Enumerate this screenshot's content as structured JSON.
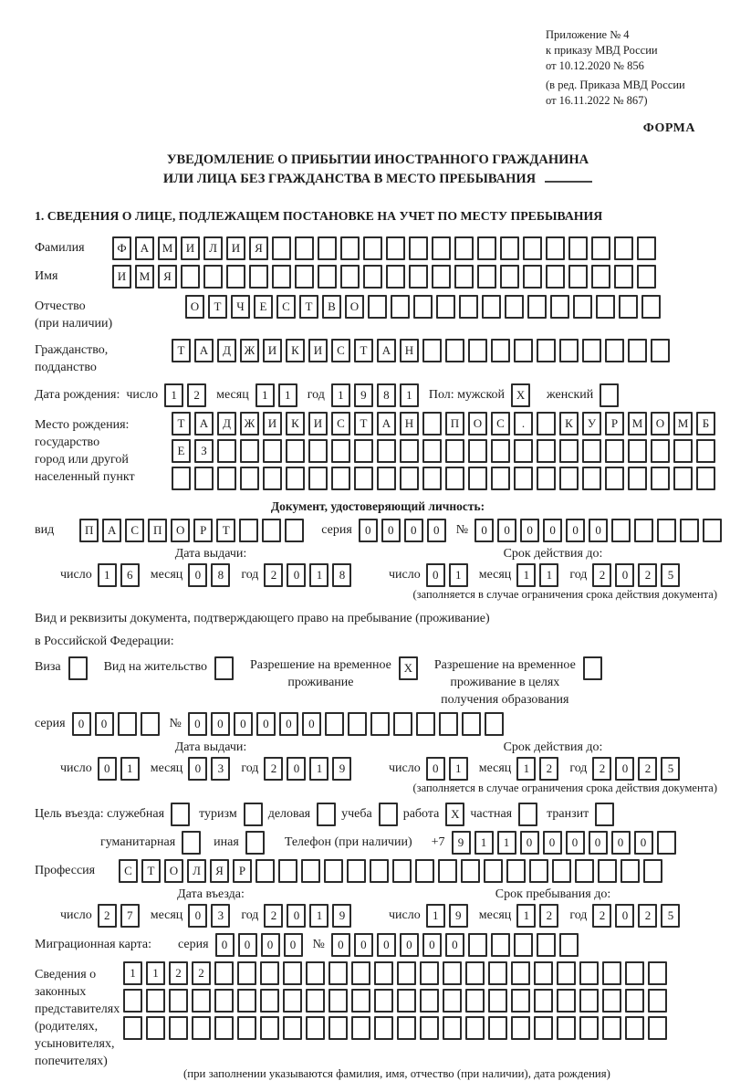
{
  "header": {
    "appendix_lines": [
      "Приложение № 4",
      "к приказу МВД России",
      "от 10.12.2020 № 856"
    ],
    "edition_lines": [
      "(в ред. Приказа МВД России",
      "от 16.11.2022 № 867)"
    ],
    "forma": "ФОРМА"
  },
  "title": {
    "line1": "УВЕДОМЛЕНИЕ О ПРИБЫТИИ ИНОСТРАННОГО ГРАЖДАНИНА",
    "line2": "ИЛИ ЛИЦА БЕЗ ГРАЖДАНСТВА В МЕСТО ПРЕБЫВАНИЯ"
  },
  "section1_title": "1. СВЕДЕНИЯ О ЛИЦЕ, ПОДЛЕЖАЩЕМ ПОСТАНОВКЕ НА УЧЕТ ПО МЕСТУ ПРЕБЫВАНИЯ",
  "labels": {
    "surname": "Фамилия",
    "name": "Имя",
    "patronymic_1": "Отчество",
    "patronymic_2": "(при наличии)",
    "citizenship_1": "Гражданство,",
    "citizenship_2": "подданство",
    "birth_date": "Дата рождения:",
    "chislo": "число",
    "mesyats": "месяц",
    "god": "год",
    "pol_male": "Пол: мужской",
    "female": "женский",
    "birth_place_1": "Место рождения:",
    "birth_place_2": "государство",
    "birth_place_3": "город или другой",
    "birth_place_4": "населенный пункт",
    "id_doc_header": "Документ, удостоверяющий личность:",
    "vid": "вид",
    "seriya": "серия",
    "nomer": "№",
    "issue_date": "Дата выдачи:",
    "valid_until": "Срок действия до:",
    "valid_note": "(заполняется в случае ограничения срока действия документа)",
    "residence_doc_1": "Вид и реквизиты документа, подтверждающего право на пребывание (проживание)",
    "residence_doc_2": "в Российской Федерации:",
    "visa": "Виза",
    "residence_permit": "Вид на жительство",
    "rvp_1": "Разрешение на временное",
    "rvp_2": "проживание",
    "rvp_edu_1": "Разрешение на временное",
    "rvp_edu_2": "проживание в целях",
    "rvp_edu_3": "получения образования",
    "purpose_official": "Цель въезда: служебная",
    "tourism": "туризм",
    "business": "деловая",
    "study": "учеба",
    "work": "работа",
    "private": "частная",
    "transit": "транзит",
    "humanitarian": "гуманитарная",
    "other": "иная",
    "phone": "Телефон (при наличии)",
    "plus7": "+7",
    "profession": "Профессия",
    "entry_date": "Дата въезда:",
    "stay_until": "Срок пребывания до:",
    "migration_card": "Миграционная карта:",
    "legal_rep_1": "Сведения о",
    "legal_rep_2": "законных",
    "legal_rep_3": "представителях",
    "legal_rep_4": "(родителях,",
    "legal_rep_5": "усыновителях,",
    "legal_rep_6": "попечителях)",
    "legal_rep_note": "(при заполнении указываются фамилия, имя, отчество (при наличии), дата рождения)"
  },
  "boxes": {
    "surname": {
      "cells": [
        "Ф",
        "А",
        "М",
        "И",
        "Л",
        "И",
        "Я"
      ],
      "total": 24
    },
    "name": {
      "cells": [
        "И",
        "М",
        "Я"
      ],
      "total": 24
    },
    "patronymic": {
      "cells": [
        "О",
        "Т",
        "Ч",
        "Е",
        "С",
        "Т",
        "В",
        "О"
      ],
      "total": 21
    },
    "citizenship": {
      "cells": [
        "Т",
        "А",
        "Д",
        "Ж",
        "И",
        "К",
        "И",
        "С",
        "Т",
        "А",
        "Н"
      ],
      "total": 22
    },
    "birth_day": {
      "cells": [
        "1",
        "2"
      ]
    },
    "birth_month": {
      "cells": [
        "1",
        "1"
      ]
    },
    "birth_year": {
      "cells": [
        "1",
        "9",
        "8",
        "1"
      ]
    },
    "birth_place_row1": {
      "cells": [
        "Т",
        "А",
        "Д",
        "Ж",
        "И",
        "К",
        "И",
        "С",
        "Т",
        "А",
        "Н",
        "",
        "П",
        "О",
        "С",
        ".",
        "",
        "К",
        "У",
        "Р",
        "М",
        "О",
        "М",
        "Б"
      ],
      "total": 24
    },
    "birth_place_row2": {
      "cells": [
        "Е",
        "З"
      ],
      "total": 24
    },
    "birth_place_row3": {
      "cells": [],
      "total": 24
    },
    "doc_type": {
      "cells": [
        "П",
        "А",
        "С",
        "П",
        "О",
        "Р",
        "Т"
      ],
      "total": 10
    },
    "doc_series": {
      "cells": [
        "0",
        "0",
        "0",
        "0"
      ]
    },
    "doc_number": {
      "cells": [
        "0",
        "0",
        "0",
        "0",
        "0",
        "0"
      ],
      "total": 11
    },
    "doc_issue_day": {
      "cells": [
        "1",
        "6"
      ]
    },
    "doc_issue_month": {
      "cells": [
        "0",
        "8"
      ]
    },
    "doc_issue_year": {
      "cells": [
        "2",
        "0",
        "1",
        "8"
      ]
    },
    "doc_valid_day": {
      "cells": [
        "0",
        "1"
      ]
    },
    "doc_valid_month": {
      "cells": [
        "1",
        "1"
      ]
    },
    "doc_valid_year": {
      "cells": [
        "2",
        "0",
        "2",
        "5"
      ]
    },
    "res_series": {
      "cells": [
        "0",
        "0"
      ],
      "total": 4
    },
    "res_number": {
      "cells": [
        "0",
        "0",
        "0",
        "0",
        "0",
        "0"
      ],
      "total": 14
    },
    "res_issue_day": {
      "cells": [
        "0",
        "1"
      ]
    },
    "res_issue_month": {
      "cells": [
        "0",
        "3"
      ]
    },
    "res_issue_year": {
      "cells": [
        "2",
        "0",
        "1",
        "9"
      ]
    },
    "res_valid_day": {
      "cells": [
        "0",
        "1"
      ]
    },
    "res_valid_month": {
      "cells": [
        "1",
        "2"
      ]
    },
    "res_valid_year": {
      "cells": [
        "2",
        "0",
        "2",
        "5"
      ]
    },
    "phone_digits": {
      "cells": [
        "9",
        "1",
        "1",
        "0",
        "0",
        "0",
        "0",
        "0",
        "0"
      ],
      "total": 10
    },
    "profession": {
      "cells": [
        "С",
        "Т",
        "О",
        "Л",
        "Я",
        "Р"
      ],
      "total": 24
    },
    "entry_day": {
      "cells": [
        "2",
        "7"
      ]
    },
    "entry_month": {
      "cells": [
        "0",
        "3"
      ]
    },
    "entry_year": {
      "cells": [
        "2",
        "0",
        "1",
        "9"
      ]
    },
    "stay_day": {
      "cells": [
        "1",
        "9"
      ]
    },
    "stay_month": {
      "cells": [
        "1",
        "2"
      ]
    },
    "stay_year": {
      "cells": [
        "2",
        "0",
        "2",
        "5"
      ]
    },
    "mig_series": {
      "cells": [
        "0",
        "0",
        "0",
        "0"
      ]
    },
    "mig_number": {
      "cells": [
        "0",
        "0",
        "0",
        "0",
        "0",
        "0"
      ],
      "total": 11
    },
    "rep_row1": {
      "cells": [
        "1",
        "1",
        "2",
        "2"
      ],
      "total": 24
    },
    "rep_row2": {
      "cells": [],
      "total": 24
    },
    "rep_row3": {
      "cells": [],
      "total": 24
    }
  },
  "checkboxes": {
    "male": "X",
    "female": "",
    "visa": "",
    "residence_permit": "",
    "rvp": "X",
    "rvp_edu": "",
    "official": "",
    "tourism": "",
    "business": "",
    "study": "",
    "work": "X",
    "private": "",
    "transit": "",
    "humanitarian": "",
    "other": ""
  }
}
